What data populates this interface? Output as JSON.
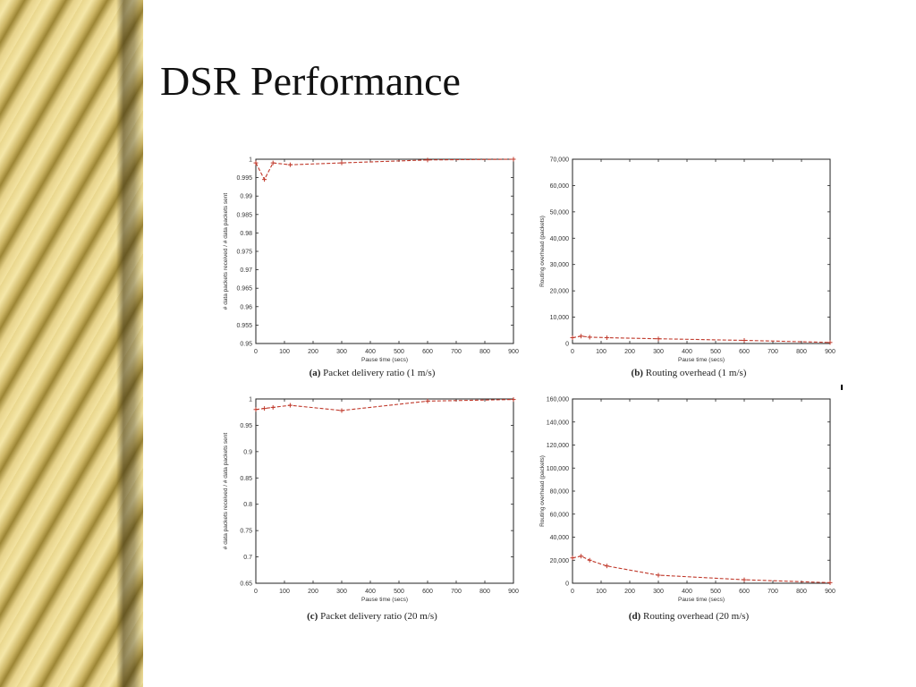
{
  "slide": {
    "title": "DSR Performance"
  },
  "colors": {
    "series": "#c0392b",
    "axis": "#222222",
    "text": "#333333"
  },
  "chart_data": [
    {
      "id": "a",
      "type": "line",
      "xlabel": "Pause time (secs)",
      "ylabel": "# data packets received / # data packets sent",
      "xlim": [
        0,
        900
      ],
      "ylim": [
        0.95,
        1.0
      ],
      "xticks": [
        "0",
        "100",
        "200",
        "300",
        "400",
        "500",
        "600",
        "700",
        "800",
        "900"
      ],
      "yticks": [
        "0.95",
        "0.955",
        "0.96",
        "0.965",
        "0.97",
        "0.975",
        "0.98",
        "0.985",
        "0.99",
        "0.995",
        "1"
      ],
      "caption_tag": "(a)",
      "caption_text": "Packet delivery ratio (1 m/s)",
      "series": [
        {
          "x": [
            0,
            30,
            60,
            120,
            300,
            600,
            900
          ],
          "y": [
            0.999,
            0.9945,
            0.999,
            0.9985,
            0.999,
            0.9998,
            1.0
          ]
        }
      ]
    },
    {
      "id": "b",
      "type": "line",
      "xlabel": "Pause time (secs)",
      "ylabel": "Routing overhead (packets)",
      "xlim": [
        0,
        900
      ],
      "ylim": [
        0,
        70000
      ],
      "xticks": [
        "0",
        "100",
        "200",
        "300",
        "400",
        "500",
        "600",
        "700",
        "800",
        "900"
      ],
      "yticks": [
        "0",
        "10,000",
        "20,000",
        "30,000",
        "40,000",
        "50,000",
        "60,000",
        "70,000"
      ],
      "caption_tag": "(b)",
      "caption_text": "Routing overhead (1 m/s)",
      "series": [
        {
          "x": [
            0,
            30,
            60,
            120,
            300,
            600,
            900
          ],
          "y": [
            2200,
            2800,
            2400,
            2200,
            1800,
            1200,
            400
          ]
        }
      ]
    },
    {
      "id": "c",
      "type": "line",
      "xlabel": "Pause time (secs)",
      "ylabel": "# data packets received / # data packets sent",
      "xlim": [
        0,
        900
      ],
      "ylim": [
        0.65,
        1.0
      ],
      "xticks": [
        "0",
        "100",
        "200",
        "300",
        "400",
        "500",
        "600",
        "700",
        "800",
        "900"
      ],
      "yticks": [
        "0.65",
        "0.7",
        "0.75",
        "0.8",
        "0.85",
        "0.9",
        "0.95",
        "1"
      ],
      "caption_tag": "(c)",
      "caption_text": "Packet delivery ratio (20 m/s)",
      "series": [
        {
          "x": [
            0,
            30,
            60,
            120,
            300,
            600,
            900
          ],
          "y": [
            0.98,
            0.982,
            0.984,
            0.988,
            0.978,
            0.996,
            0.999
          ]
        }
      ]
    },
    {
      "id": "d",
      "type": "line",
      "xlabel": "Pause time (secs)",
      "ylabel": "Routing overhead (packets)",
      "xlim": [
        0,
        900
      ],
      "ylim": [
        0,
        160000
      ],
      "xticks": [
        "0",
        "100",
        "200",
        "300",
        "400",
        "500",
        "600",
        "700",
        "800",
        "900"
      ],
      "yticks": [
        "0",
        "20,000",
        "40,000",
        "60,000",
        "80,000",
        "100,000",
        "120,000",
        "140,000",
        "160,000"
      ],
      "caption_tag": "(d)",
      "caption_text": "Routing overhead (20 m/s)",
      "series": [
        {
          "x": [
            0,
            30,
            60,
            120,
            300,
            600,
            900
          ],
          "y": [
            22000,
            23500,
            20000,
            15000,
            7000,
            3000,
            500
          ]
        }
      ]
    }
  ]
}
